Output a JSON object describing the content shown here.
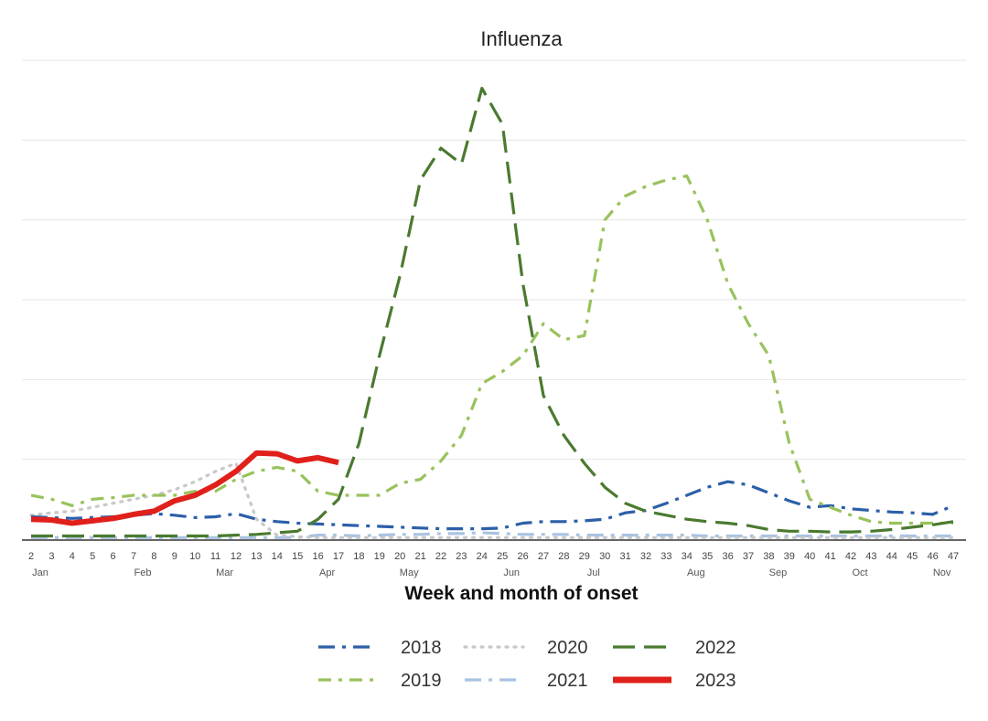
{
  "chart_data": {
    "type": "line",
    "title": "Influenza",
    "xlabel": "Week and month of onset",
    "ylabel": "",
    "ylim": [
      0,
      6
    ],
    "grid": true,
    "legend_position": "bottom",
    "x": [
      2,
      3,
      4,
      5,
      6,
      7,
      8,
      9,
      10,
      11,
      12,
      13,
      14,
      15,
      16,
      17,
      18,
      19,
      20,
      21,
      22,
      23,
      24,
      25,
      26,
      27,
      28,
      29,
      30,
      31,
      32,
      33,
      34,
      35,
      36,
      37,
      38,
      39,
      40,
      41,
      42,
      43,
      44,
      45,
      46,
      47
    ],
    "x_tick_labels": [
      "2",
      "3",
      "4",
      "5",
      "6",
      "7",
      "8",
      "9",
      "10",
      "11",
      "12",
      "13",
      "14",
      "15",
      "16",
      "17",
      "18",
      "19",
      "20",
      "21",
      "22",
      "23",
      "24",
      "25",
      "26",
      "27",
      "28",
      "29",
      "30",
      "31",
      "32",
      "33",
      "34",
      "35",
      "36",
      "37",
      "38",
      "39",
      "40",
      "41",
      "42",
      "43",
      "44",
      "45",
      "46",
      "47"
    ],
    "months": [
      {
        "label": "Jan",
        "week": 2
      },
      {
        "label": "Feb",
        "week": 7
      },
      {
        "label": "Mar",
        "week": 11
      },
      {
        "label": "Apr",
        "week": 16
      },
      {
        "label": "May",
        "week": 20
      },
      {
        "label": "Jun",
        "week": 25
      },
      {
        "label": "Jul",
        "week": 29
      },
      {
        "label": "Aug",
        "week": 34
      },
      {
        "label": "Sep",
        "week": 38
      },
      {
        "label": "Oct",
        "week": 42
      },
      {
        "label": "Nov",
        "week": 46
      }
    ],
    "series": [
      {
        "name": "2018",
        "color": "#2b5fa8",
        "dash": "long-dash-dot",
        "values": [
          0.28,
          0.27,
          0.26,
          0.27,
          0.28,
          0.3,
          0.32,
          0.3,
          0.27,
          0.28,
          0.32,
          0.25,
          0.22,
          0.2,
          0.19,
          0.18,
          0.17,
          0.16,
          0.15,
          0.14,
          0.13,
          0.13,
          0.13,
          0.14,
          0.2,
          0.22,
          0.22,
          0.23,
          0.25,
          0.33,
          0.36,
          0.45,
          0.55,
          0.65,
          0.72,
          0.68,
          0.58,
          0.48,
          0.4,
          0.42,
          0.38,
          0.36,
          0.34,
          0.33,
          0.31,
          0.42
        ]
      },
      {
        "name": "2019",
        "color": "#99c25c",
        "dash": "dash-dot",
        "values": [
          0.55,
          0.5,
          0.42,
          0.5,
          0.52,
          0.55,
          0.55,
          0.55,
          0.6,
          0.6,
          0.75,
          0.85,
          0.9,
          0.85,
          0.6,
          0.55,
          0.55,
          0.55,
          0.7,
          0.75,
          0.98,
          1.3,
          1.95,
          2.1,
          2.3,
          2.7,
          2.5,
          2.55,
          4.0,
          4.3,
          4.42,
          4.5,
          4.55,
          4.0,
          3.2,
          2.7,
          2.3,
          1.2,
          0.5,
          0.4,
          0.3,
          0.22,
          0.2,
          0.2,
          0.2,
          0.2
        ]
      },
      {
        "name": "2020",
        "color": "#c8c8c8",
        "dash": "dotted",
        "values": [
          0.3,
          0.33,
          0.35,
          0.4,
          0.45,
          0.5,
          0.55,
          0.62,
          0.72,
          0.85,
          0.95,
          0.25,
          0.05,
          0.03,
          0.02,
          0.02,
          0.02,
          0.02,
          0.02,
          0.02,
          0.02,
          0.02,
          0.02,
          0.02,
          0.02,
          0.02,
          0.02,
          0.02,
          0.02,
          0.02,
          0.02,
          0.02,
          0.02,
          0.02,
          0.02,
          0.02,
          0.02,
          0.02,
          0.02,
          0.02,
          0.02,
          0.02,
          0.02,
          0.02,
          0.02,
          0.02
        ]
      },
      {
        "name": "2021",
        "color": "#a9c3e2",
        "dash": "long-dash-dot",
        "values": [
          0.02,
          0.02,
          0.02,
          0.02,
          0.02,
          0.02,
          0.02,
          0.02,
          0.02,
          0.02,
          0.02,
          0.02,
          0.02,
          0.02,
          0.05,
          0.05,
          0.04,
          0.05,
          0.06,
          0.06,
          0.07,
          0.07,
          0.08,
          0.07,
          0.06,
          0.06,
          0.06,
          0.05,
          0.05,
          0.05,
          0.05,
          0.05,
          0.05,
          0.04,
          0.04,
          0.04,
          0.04,
          0.04,
          0.04,
          0.04,
          0.04,
          0.04,
          0.04,
          0.04,
          0.04,
          0.04
        ]
      },
      {
        "name": "2022",
        "color": "#4a7a2f",
        "dash": "long-dash",
        "values": [
          0.04,
          0.04,
          0.04,
          0.04,
          0.04,
          0.04,
          0.04,
          0.04,
          0.04,
          0.04,
          0.05,
          0.06,
          0.08,
          0.1,
          0.25,
          0.5,
          1.2,
          2.3,
          3.3,
          4.5,
          4.9,
          4.7,
          5.65,
          5.2,
          3.2,
          1.8,
          1.3,
          0.95,
          0.65,
          0.45,
          0.35,
          0.3,
          0.25,
          0.22,
          0.2,
          0.17,
          0.12,
          0.1,
          0.1,
          0.09,
          0.09,
          0.1,
          0.12,
          0.15,
          0.18,
          0.22
        ]
      },
      {
        "name": "2023",
        "color": "#e0201b",
        "dash": "solid",
        "values": [
          0.25,
          0.24,
          0.2,
          0.23,
          0.26,
          0.31,
          0.35,
          0.48,
          0.55,
          0.68,
          0.85,
          1.08,
          1.07,
          0.98,
          1.02,
          0.96,
          null,
          null,
          null,
          null,
          null,
          null,
          null,
          null,
          null,
          null,
          null,
          null,
          null,
          null,
          null,
          null,
          null,
          null,
          null,
          null,
          null,
          null,
          null,
          null,
          null,
          null,
          null,
          null,
          null,
          null
        ]
      }
    ],
    "legend": {
      "rows": [
        [
          "2018",
          "2020",
          "2022"
        ],
        [
          "2019",
          "2021",
          "2023"
        ]
      ]
    }
  }
}
